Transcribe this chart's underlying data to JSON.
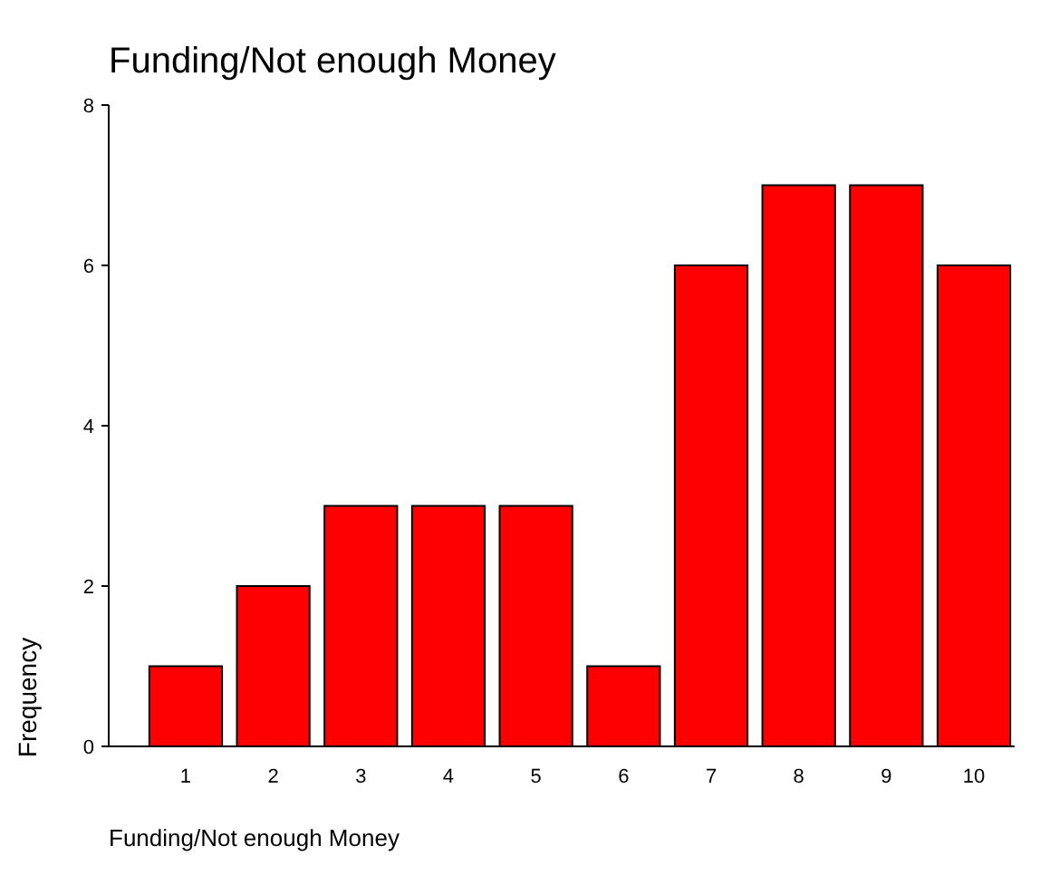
{
  "chart_data": {
    "type": "bar",
    "title": "Funding/Not enough Money",
    "xlabel": "Funding/Not enough Money",
    "ylabel": "Frequency",
    "categories": [
      "1",
      "2",
      "3",
      "4",
      "5",
      "6",
      "7",
      "8",
      "9",
      "10"
    ],
    "values": [
      1,
      2,
      3,
      3,
      3,
      1,
      6,
      7,
      7,
      6
    ],
    "color": "#ff0000",
    "ylim": [
      0,
      8
    ],
    "yticks": [
      0,
      2,
      4,
      6,
      8
    ],
    "grid": false
  }
}
